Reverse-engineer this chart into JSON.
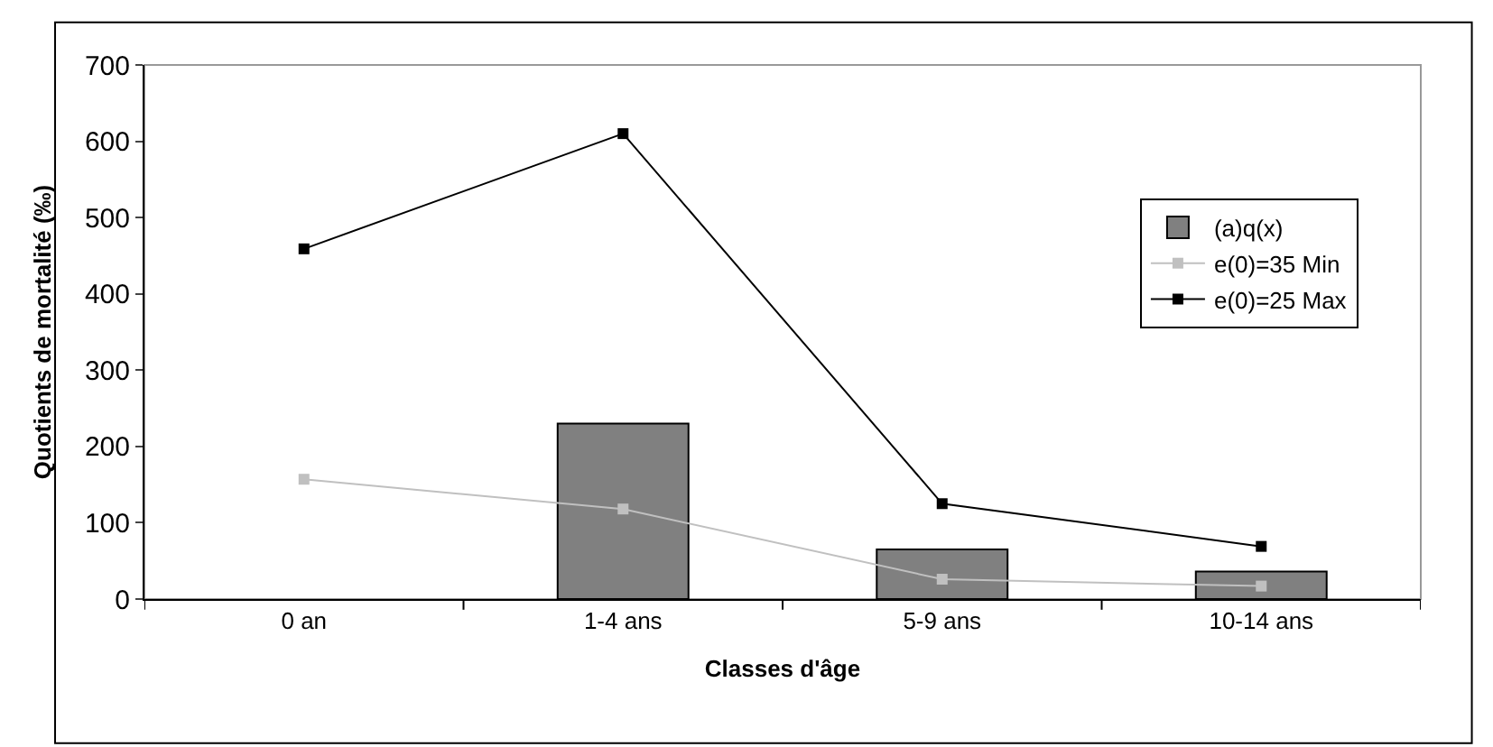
{
  "chart_data": {
    "type": "bar",
    "xlabel": "Classes d'âge",
    "ylabel": "Quotients de mortalité (‰)",
    "categories": [
      "0 an",
      "1-4 ans",
      "5-9 ans",
      "10-14 ans"
    ],
    "series": [
      {
        "name": "(a)q(x)",
        "color": "#808080",
        "values": [
          null,
          230,
          65,
          36
        ]
      },
      {
        "name": "e(0)=35 Min",
        "type": "line",
        "color": "#c0c0c0",
        "marker": "square",
        "values": [
          157,
          118,
          26,
          17
        ]
      },
      {
        "name": "e(0)=25 Max",
        "type": "line",
        "color": "#000000",
        "marker": "square",
        "values": [
          459,
          610,
          125,
          69
        ]
      }
    ],
    "ylim": [
      0,
      700
    ],
    "yticks": [
      0,
      100,
      200,
      300,
      400,
      500,
      600,
      700
    ],
    "grid": false,
    "legend": "right"
  }
}
